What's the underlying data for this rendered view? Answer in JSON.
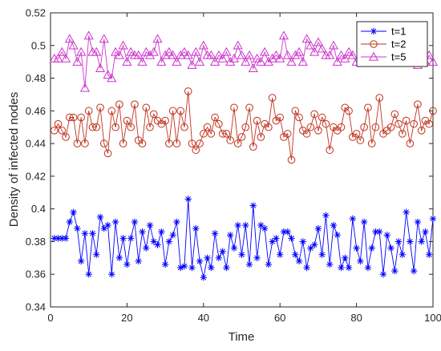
{
  "chart_data": {
    "type": "line",
    "xlabel": "Time",
    "ylabel": "Density of infected nodes",
    "xlim": [
      0,
      100
    ],
    "ylim": [
      0.34,
      0.52
    ],
    "xticks": [
      0,
      20,
      40,
      60,
      80,
      100
    ],
    "yticks": [
      0.34,
      0.36,
      0.38,
      0.4,
      0.42,
      0.44,
      0.46,
      0.48,
      0.5,
      0.52
    ],
    "ytick_labels": [
      "0.34",
      "0.36",
      "0.38",
      "0.4",
      "0.42",
      "0.44",
      "0.46",
      "0.48",
      "0.5",
      "0.52"
    ],
    "legend_position": "top-right",
    "grid": false,
    "series": [
      {
        "name": "t=1",
        "color": "#0000ff",
        "marker": "asterisk",
        "x": [
          1,
          2,
          3,
          4,
          5,
          6,
          7,
          8,
          9,
          10,
          11,
          12,
          13,
          14,
          15,
          16,
          17,
          18,
          19,
          20,
          21,
          22,
          23,
          24,
          25,
          26,
          27,
          28,
          29,
          30,
          31,
          32,
          33,
          34,
          35,
          36,
          37,
          38,
          39,
          40,
          41,
          42,
          43,
          44,
          45,
          46,
          47,
          48,
          49,
          50,
          51,
          52,
          53,
          54,
          55,
          56,
          57,
          58,
          59,
          60,
          61,
          62,
          63,
          64,
          65,
          66,
          67,
          68,
          69,
          70,
          71,
          72,
          73,
          74,
          75,
          76,
          77,
          78,
          79,
          80,
          81,
          82,
          83,
          84,
          85,
          86,
          87,
          88,
          89,
          90,
          91,
          92,
          93,
          94,
          95,
          96,
          97,
          98,
          99,
          100
        ],
        "values": [
          0.382,
          0.382,
          0.382,
          0.382,
          0.392,
          0.398,
          0.388,
          0.368,
          0.385,
          0.36,
          0.385,
          0.372,
          0.395,
          0.388,
          0.39,
          0.36,
          0.392,
          0.37,
          0.382,
          0.366,
          0.382,
          0.392,
          0.368,
          0.386,
          0.376,
          0.39,
          0.38,
          0.378,
          0.386,
          0.366,
          0.38,
          0.384,
          0.392,
          0.364,
          0.365,
          0.406,
          0.364,
          0.388,
          0.368,
          0.358,
          0.37,
          0.364,
          0.385,
          0.37,
          0.374,
          0.364,
          0.384,
          0.376,
          0.39,
          0.372,
          0.39,
          0.366,
          0.402,
          0.37,
          0.39,
          0.388,
          0.366,
          0.38,
          0.382,
          0.372,
          0.386,
          0.386,
          0.382,
          0.372,
          0.368,
          0.38,
          0.364,
          0.376,
          0.378,
          0.388,
          0.372,
          0.396,
          0.366,
          0.39,
          0.384,
          0.364,
          0.37,
          0.364,
          0.394,
          0.376,
          0.368,
          0.392,
          0.364,
          0.376,
          0.386,
          0.386,
          0.36,
          0.384,
          0.376,
          0.362,
          0.38,
          0.372,
          0.398,
          0.38,
          0.362,
          0.392,
          0.38,
          0.386,
          0.372,
          0.394
        ]
      },
      {
        "name": "t=2",
        "color": "#c0301c",
        "marker": "circle",
        "x": [
          1,
          2,
          3,
          4,
          5,
          6,
          7,
          8,
          9,
          10,
          11,
          12,
          13,
          14,
          15,
          16,
          17,
          18,
          19,
          20,
          21,
          22,
          23,
          24,
          25,
          26,
          27,
          28,
          29,
          30,
          31,
          32,
          33,
          34,
          35,
          36,
          37,
          38,
          39,
          40,
          41,
          42,
          43,
          44,
          45,
          46,
          47,
          48,
          49,
          50,
          51,
          52,
          53,
          54,
          55,
          56,
          57,
          58,
          59,
          60,
          61,
          62,
          63,
          64,
          65,
          66,
          67,
          68,
          69,
          70,
          71,
          72,
          73,
          74,
          75,
          76,
          77,
          78,
          79,
          80,
          81,
          82,
          83,
          84,
          85,
          86,
          87,
          88,
          89,
          90,
          91,
          92,
          93,
          94,
          95,
          96,
          97,
          98,
          99,
          100
        ],
        "values": [
          0.448,
          0.452,
          0.448,
          0.444,
          0.456,
          0.456,
          0.44,
          0.456,
          0.44,
          0.46,
          0.45,
          0.45,
          0.462,
          0.44,
          0.434,
          0.46,
          0.45,
          0.464,
          0.44,
          0.454,
          0.45,
          0.464,
          0.442,
          0.44,
          0.462,
          0.45,
          0.458,
          0.454,
          0.452,
          0.454,
          0.44,
          0.46,
          0.44,
          0.46,
          0.45,
          0.472,
          0.44,
          0.436,
          0.44,
          0.446,
          0.45,
          0.446,
          0.456,
          0.452,
          0.446,
          0.446,
          0.442,
          0.462,
          0.44,
          0.444,
          0.45,
          0.462,
          0.438,
          0.454,
          0.444,
          0.452,
          0.45,
          0.468,
          0.454,
          0.456,
          0.444,
          0.446,
          0.43,
          0.46,
          0.456,
          0.448,
          0.446,
          0.45,
          0.458,
          0.448,
          0.456,
          0.452,
          0.436,
          0.45,
          0.448,
          0.45,
          0.462,
          0.46,
          0.444,
          0.446,
          0.442,
          0.45,
          0.462,
          0.44,
          0.45,
          0.468,
          0.446,
          0.448,
          0.45,
          0.458,
          0.452,
          0.446,
          0.454,
          0.44,
          0.452,
          0.464,
          0.448,
          0.454,
          0.452,
          0.46
        ]
      },
      {
        "name": "t=5",
        "color": "#cc33cc",
        "marker": "triangle",
        "x": [
          1,
          2,
          3,
          4,
          5,
          6,
          7,
          8,
          9,
          10,
          11,
          12,
          13,
          14,
          15,
          16,
          17,
          18,
          19,
          20,
          21,
          22,
          23,
          24,
          25,
          26,
          27,
          28,
          29,
          30,
          31,
          32,
          33,
          34,
          35,
          36,
          37,
          38,
          39,
          40,
          41,
          42,
          43,
          44,
          45,
          46,
          47,
          48,
          49,
          50,
          51,
          52,
          53,
          54,
          55,
          56,
          57,
          58,
          59,
          60,
          61,
          62,
          63,
          64,
          65,
          66,
          67,
          68,
          69,
          70,
          71,
          72,
          73,
          74,
          75,
          76,
          77,
          78,
          79,
          80,
          81,
          82,
          83,
          84,
          85,
          86,
          87,
          88,
          89,
          90,
          91,
          92,
          93,
          94,
          95,
          96,
          97,
          98,
          99,
          100
        ],
        "values": [
          0.492,
          0.492,
          0.496,
          0.492,
          0.504,
          0.5,
          0.49,
          0.496,
          0.474,
          0.506,
          0.496,
          0.496,
          0.486,
          0.504,
          0.482,
          0.48,
          0.496,
          0.494,
          0.5,
          0.49,
          0.496,
          0.494,
          0.494,
          0.49,
          0.496,
          0.494,
          0.496,
          0.504,
          0.49,
          0.494,
          0.496,
          0.494,
          0.49,
          0.494,
          0.496,
          0.494,
          0.488,
          0.496,
          0.49,
          0.5,
          0.494,
          0.494,
          0.49,
          0.494,
          0.492,
          0.496,
          0.49,
          0.492,
          0.5,
          0.494,
          0.49,
          0.494,
          0.486,
          0.492,
          0.49,
          0.496,
          0.49,
          0.492,
          0.494,
          0.492,
          0.506,
          0.494,
          0.49,
          0.494,
          0.496,
          0.49,
          0.504,
          0.5,
          0.496,
          0.502,
          0.498,
          0.494,
          0.494,
          0.5,
          0.49,
          0.494,
          0.492,
          0.496,
          0.494,
          0.49,
          0.494,
          0.496,
          0.49,
          0.494,
          0.496,
          0.49,
          0.494,
          0.49,
          0.492,
          0.494,
          0.49,
          0.49,
          0.492,
          0.49,
          0.494,
          0.488,
          0.494,
          0.49,
          0.494,
          0.49
        ]
      }
    ]
  }
}
